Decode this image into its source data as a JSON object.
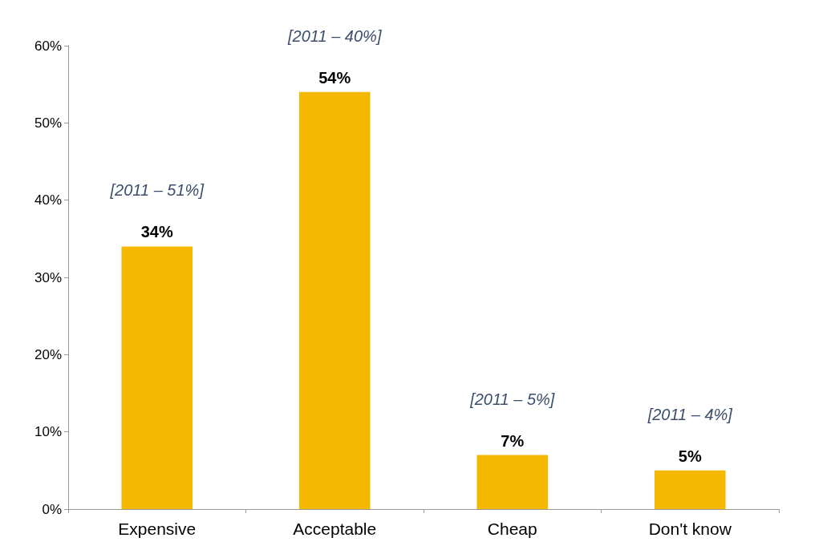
{
  "chart_data": {
    "type": "bar",
    "categories": [
      "Expensive",
      "Acceptable",
      "Cheap",
      "Don't know"
    ],
    "values": [
      34,
      54,
      7,
      5
    ],
    "color": "#f5b800",
    "value_labels": [
      "34%",
      "54%",
      "7%",
      "5%"
    ],
    "ylim": [
      0,
      60
    ],
    "yticks": [
      {
        "value": 0,
        "label": "0%"
      },
      {
        "value": 10,
        "label": "10%"
      },
      {
        "value": 20,
        "label": "20%"
      },
      {
        "value": 30,
        "label": "30%"
      },
      {
        "value": 40,
        "label": "40%"
      },
      {
        "value": 50,
        "label": "50%"
      },
      {
        "value": 60,
        "label": "60%"
      }
    ],
    "grid": false,
    "annotations": [
      {
        "text": "[2011 – 51%]",
        "x": "Expensive",
        "y": 34
      },
      {
        "text": "[2011 – 40%]",
        "x": "Acceptable",
        "y": 54
      },
      {
        "text": "[2011 – 5%]",
        "x": "Cheap",
        "y": 7
      },
      {
        "text": "[2011 – 4%]",
        "x": "Don't know",
        "y": 5
      }
    ]
  }
}
